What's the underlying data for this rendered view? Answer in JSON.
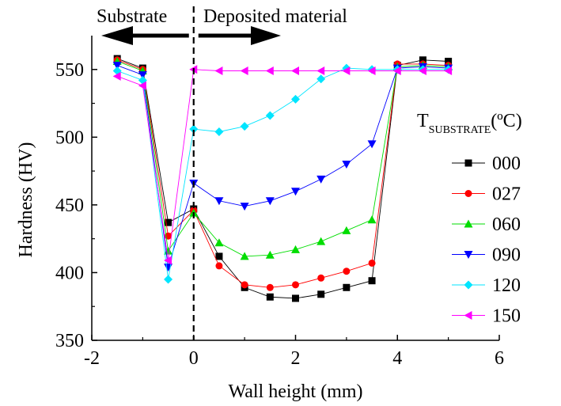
{
  "chart_data": {
    "type": "line",
    "xlabel": "Wall height (mm)",
    "ylabel": "Hardness (HV)",
    "xlim": [
      -2,
      6
    ],
    "ylim": [
      350,
      575
    ],
    "x_ticks": [
      -2,
      0,
      2,
      4,
      6
    ],
    "y_ticks": [
      350,
      400,
      450,
      500,
      550
    ],
    "x_tick_labels": [
      "-2",
      "0",
      "2",
      "4",
      "6"
    ],
    "y_tick_labels": [
      "350",
      "400",
      "450",
      "500",
      "550"
    ],
    "grid": false,
    "legend_position": "right",
    "legend_title": {
      "main": "T",
      "subscript": "SUBSTRATE",
      "suffix": "(ºC)"
    },
    "annotations": {
      "left_label": "Substrate",
      "right_label": "Deposited material",
      "divider_x": 0
    },
    "series": [
      {
        "name": "000",
        "color": "#000000",
        "marker": "square",
        "x": [
          -1.5,
          -1.0,
          -0.5,
          0.0,
          0.5,
          1.0,
          1.5,
          2.0,
          2.5,
          3.0,
          3.5,
          4.0,
          4.5,
          5.0
        ],
        "y": [
          558,
          551,
          437,
          447,
          412,
          389,
          382,
          381,
          384,
          389,
          394,
          553,
          557,
          556
        ]
      },
      {
        "name": "027",
        "color": "#ff0000",
        "marker": "circle",
        "x": [
          -1.5,
          -1.0,
          -0.5,
          0.0,
          0.5,
          1.0,
          1.5,
          2.0,
          2.5,
          3.0,
          3.5,
          4.0,
          4.5,
          5.0
        ],
        "y": [
          557,
          550,
          427,
          446,
          405,
          391,
          389,
          391,
          396,
          401,
          407,
          554,
          554,
          553
        ]
      },
      {
        "name": "060",
        "color": "#00dd00",
        "marker": "triangle-up",
        "x": [
          -1.5,
          -1.0,
          -0.5,
          0.0,
          0.5,
          1.0,
          1.5,
          2.0,
          2.5,
          3.0,
          3.5,
          4.0,
          4.5,
          5.0
        ],
        "y": [
          556,
          549,
          416,
          444,
          422,
          412,
          413,
          417,
          423,
          431,
          439,
          552,
          553,
          552
        ]
      },
      {
        "name": "090",
        "color": "#0000ff",
        "marker": "triangle-down",
        "x": [
          -1.5,
          -1.0,
          -0.5,
          0.0,
          0.5,
          1.0,
          1.5,
          2.0,
          2.5,
          3.0,
          3.5,
          4.0,
          4.5,
          5.0
        ],
        "y": [
          553,
          546,
          404,
          466,
          453,
          449,
          453,
          460,
          469,
          480,
          495,
          551,
          552,
          551
        ]
      },
      {
        "name": "120",
        "color": "#00e5ff",
        "marker": "diamond",
        "x": [
          -1.5,
          -1.0,
          -0.5,
          0.0,
          0.5,
          1.0,
          1.5,
          2.0,
          2.5,
          3.0,
          3.5,
          4.0,
          4.5,
          5.0
        ],
        "y": [
          549,
          542,
          395,
          506,
          504,
          508,
          516,
          528,
          543,
          551,
          550,
          550,
          550,
          550
        ]
      },
      {
        "name": "150",
        "color": "#ff00ff",
        "marker": "triangle-left",
        "x": [
          -1.5,
          -1.0,
          -0.5,
          0.0,
          0.5,
          1.0,
          1.5,
          2.0,
          2.5,
          3.0,
          3.5,
          4.0,
          4.5,
          5.0
        ],
        "y": [
          545,
          538,
          409,
          550,
          549,
          549,
          549,
          549,
          549,
          549,
          549,
          549,
          549,
          549
        ]
      }
    ]
  }
}
